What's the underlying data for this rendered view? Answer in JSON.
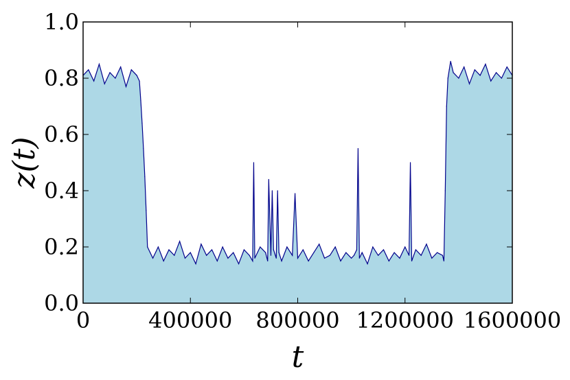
{
  "chart_data": {
    "type": "line",
    "title": "",
    "xlabel": "t",
    "ylabel": "z(t)",
    "xlim": [
      0,
      1600000
    ],
    "ylim": [
      0.0,
      1.0
    ],
    "grid": false,
    "x_ticks": [
      0,
      400000,
      800000,
      1200000,
      1600000
    ],
    "x_tick_labels": [
      "0",
      "400000",
      "800000",
      "1200000",
      "1600000"
    ],
    "y_ticks": [
      0.0,
      0.2,
      0.4,
      0.6,
      0.8,
      1.0
    ],
    "y_tick_labels": [
      "0.0",
      "0.2",
      "0.4",
      "0.6",
      "0.8",
      "1.0"
    ],
    "series": [
      {
        "line_color": "#00008b",
        "fill_color": "#add8e6",
        "x": [
          0,
          20000,
          40000,
          60000,
          80000,
          100000,
          120000,
          140000,
          160000,
          180000,
          200000,
          210000,
          215000,
          220000,
          225000,
          230000,
          235000,
          240000,
          250000,
          260000,
          280000,
          300000,
          320000,
          340000,
          360000,
          380000,
          400000,
          420000,
          440000,
          460000,
          480000,
          500000,
          520000,
          540000,
          560000,
          580000,
          600000,
          620000,
          632000,
          636000,
          640000,
          660000,
          680000,
          688000,
          692000,
          700000,
          705000,
          710000,
          720000,
          725000,
          730000,
          740000,
          760000,
          780000,
          790000,
          800000,
          820000,
          840000,
          860000,
          880000,
          900000,
          920000,
          940000,
          960000,
          980000,
          1000000,
          1010000,
          1020000,
          1025000,
          1030000,
          1040000,
          1060000,
          1080000,
          1100000,
          1120000,
          1140000,
          1160000,
          1180000,
          1200000,
          1215000,
          1220000,
          1225000,
          1240000,
          1260000,
          1280000,
          1300000,
          1320000,
          1340000,
          1345000,
          1350000,
          1355000,
          1360000,
          1365000,
          1370000,
          1380000,
          1400000,
          1420000,
          1440000,
          1460000,
          1480000,
          1500000,
          1520000,
          1540000,
          1560000,
          1580000,
          1600000
        ],
        "y": [
          0.81,
          0.83,
          0.79,
          0.85,
          0.78,
          0.82,
          0.8,
          0.84,
          0.77,
          0.83,
          0.81,
          0.79,
          0.72,
          0.64,
          0.55,
          0.45,
          0.33,
          0.2,
          0.18,
          0.16,
          0.2,
          0.15,
          0.19,
          0.17,
          0.22,
          0.16,
          0.18,
          0.14,
          0.21,
          0.17,
          0.19,
          0.15,
          0.2,
          0.16,
          0.18,
          0.14,
          0.19,
          0.17,
          0.15,
          0.5,
          0.16,
          0.2,
          0.18,
          0.15,
          0.44,
          0.17,
          0.4,
          0.19,
          0.16,
          0.4,
          0.18,
          0.15,
          0.2,
          0.17,
          0.39,
          0.16,
          0.19,
          0.15,
          0.18,
          0.21,
          0.16,
          0.17,
          0.2,
          0.15,
          0.18,
          0.16,
          0.17,
          0.19,
          0.55,
          0.16,
          0.18,
          0.14,
          0.2,
          0.17,
          0.19,
          0.15,
          0.18,
          0.16,
          0.2,
          0.17,
          0.5,
          0.15,
          0.19,
          0.17,
          0.21,
          0.16,
          0.18,
          0.17,
          0.15,
          0.4,
          0.7,
          0.8,
          0.83,
          0.86,
          0.82,
          0.8,
          0.84,
          0.78,
          0.83,
          0.81,
          0.85,
          0.79,
          0.82,
          0.8,
          0.84,
          0.81
        ]
      }
    ]
  }
}
